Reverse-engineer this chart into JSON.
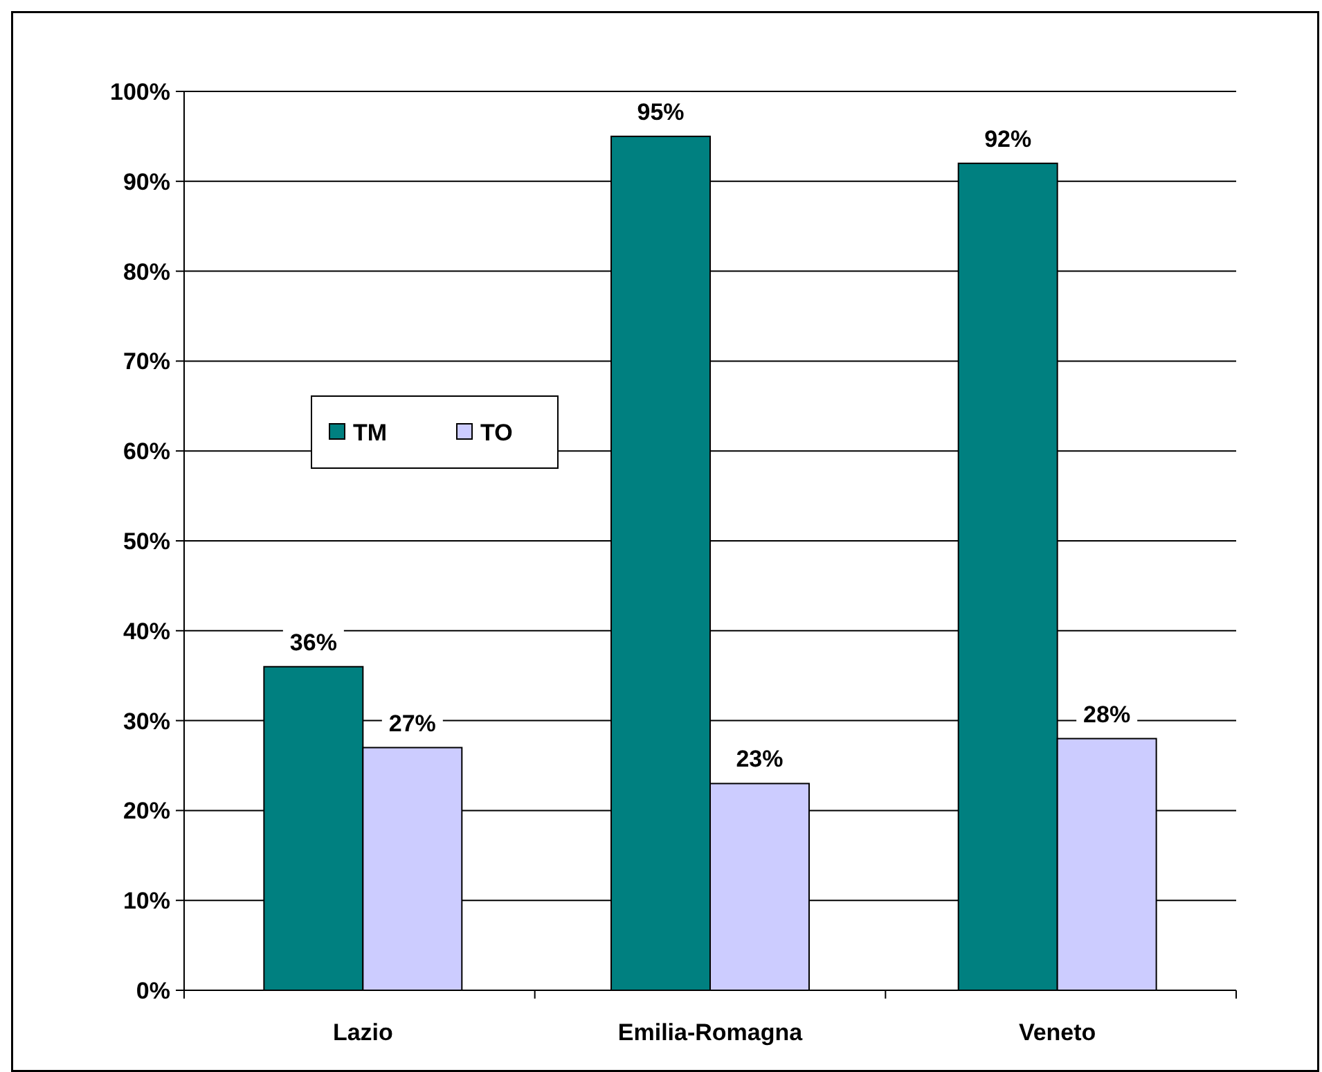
{
  "chart_data": {
    "type": "bar",
    "categories": [
      "Lazio",
      "Emilia-Romagna",
      "Veneto"
    ],
    "series": [
      {
        "name": "TM",
        "color": "#008080",
        "values": [
          36,
          95,
          92
        ],
        "value_labels": [
          "36%",
          "95%",
          "92%"
        ]
      },
      {
        "name": "TO",
        "color": "#ccccff",
        "values": [
          27,
          23,
          28
        ],
        "value_labels": [
          "27%",
          "23%",
          "28%"
        ]
      }
    ],
    "ylim": [
      0,
      100
    ],
    "yticks": [
      {
        "value": 0,
        "label": "0%"
      },
      {
        "value": 10,
        "label": "10%"
      },
      {
        "value": 20,
        "label": "20%"
      },
      {
        "value": 30,
        "label": "30%"
      },
      {
        "value": 40,
        "label": "40%"
      },
      {
        "value": 50,
        "label": "50%"
      },
      {
        "value": 60,
        "label": "60%"
      },
      {
        "value": 70,
        "label": "70%"
      },
      {
        "value": 80,
        "label": "80%"
      },
      {
        "value": 90,
        "label": "90%"
      },
      {
        "value": 100,
        "label": "100%"
      }
    ],
    "grid": "y",
    "legend": "left"
  }
}
